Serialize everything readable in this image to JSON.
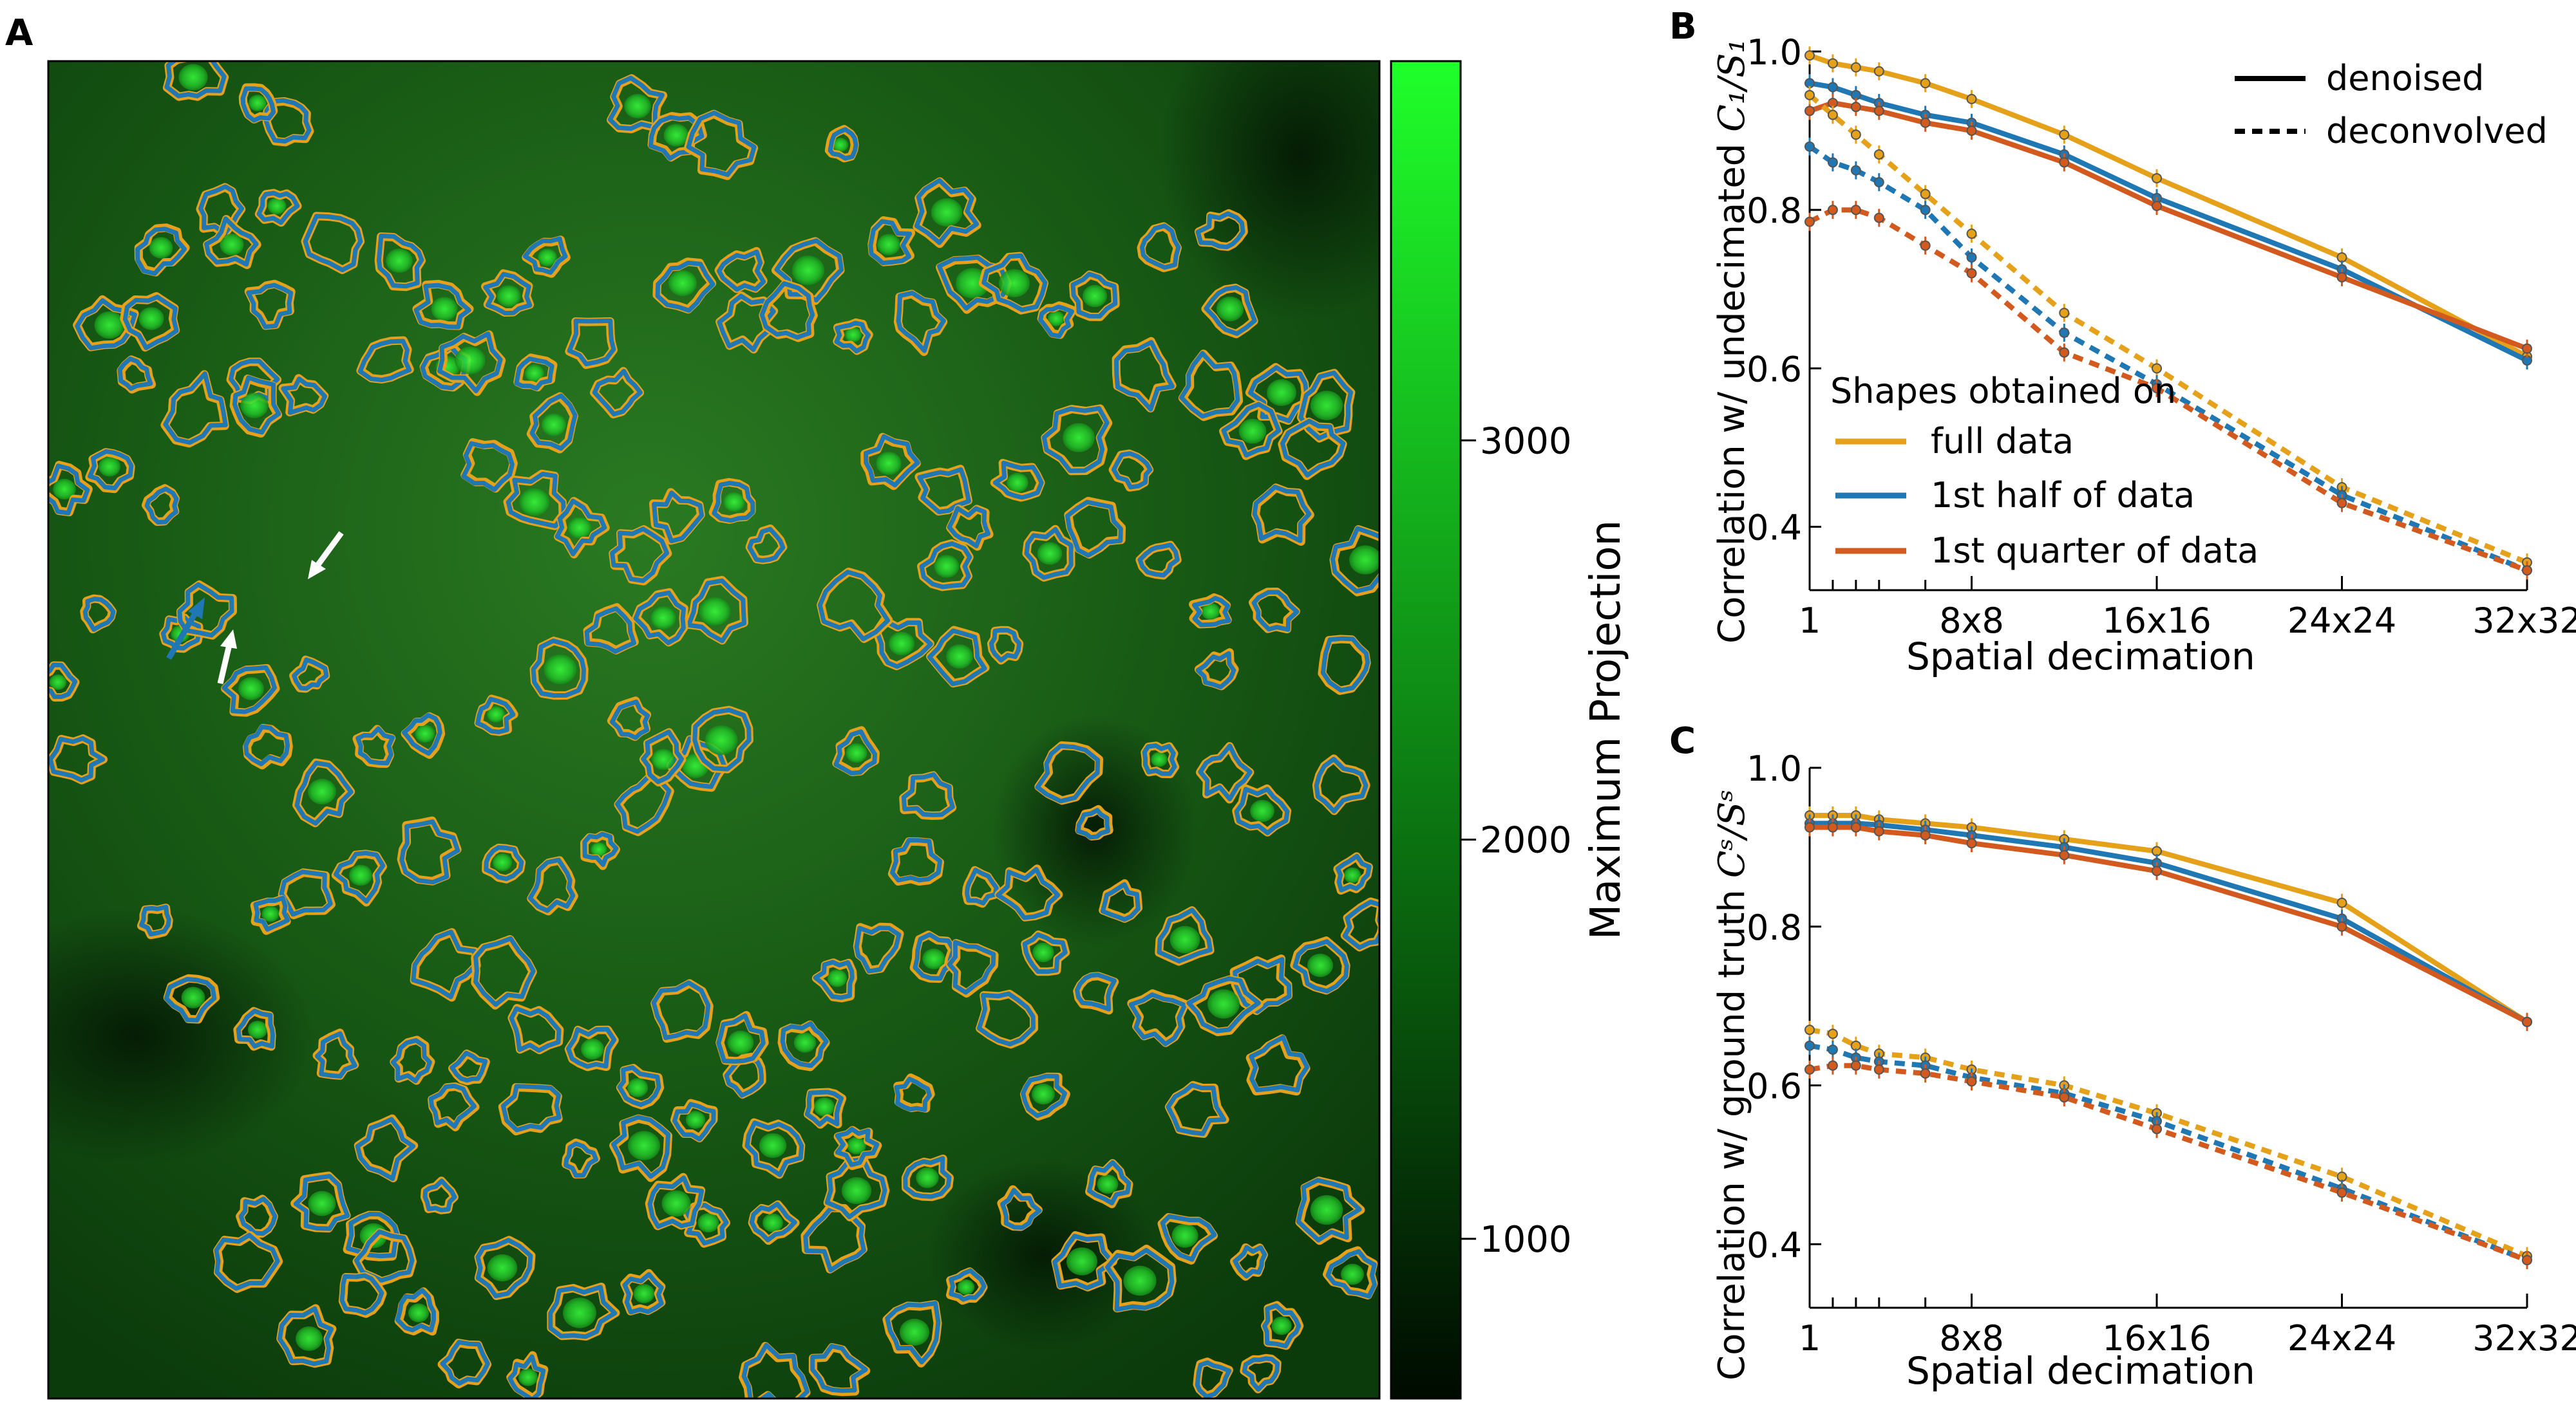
{
  "panels": {
    "a": {
      "letter": "A",
      "colorbar": {
        "label": "Maximum Projection",
        "ticks": [
          "1000",
          "2000",
          "3000"
        ],
        "tick_values": [
          1000,
          2000,
          3000
        ],
        "range": [
          600,
          3950
        ],
        "colors": {
          "low": "#000a00",
          "mid": "#0c7a12",
          "high": "#1fff2a"
        }
      }
    },
    "b": {
      "letter": "B",
      "ylabel_prefix": "Correlation w/ undecimated ",
      "ylabel_math": "C₁/S₁",
      "xlabel": "Spatial decimation"
    },
    "c": {
      "letter": "C",
      "ylabel_prefix": "Correlation w/ ground truth ",
      "ylabel_math": "Cˢ/Sˢ",
      "xlabel": "Spatial decimation"
    }
  },
  "legend": {
    "linestyles": [
      {
        "label": "denoised",
        "style": "solid"
      },
      {
        "label": "deconvolved",
        "style": "dashed"
      }
    ],
    "shapes_title": "Shapes obtained on",
    "series": [
      {
        "label": "full data",
        "color": "#e6a11b"
      },
      {
        "label": "1st half of data",
        "color": "#1f77b4"
      },
      {
        "label": "1st quarter of data",
        "color": "#d35a1e"
      }
    ]
  },
  "chart_data": [
    {
      "type": "line",
      "panel": "B",
      "xlabel": "Spatial decimation",
      "ylabel": "Correlation w/ undecimated C1/S1",
      "x": [
        1,
        2,
        3,
        4,
        6,
        8,
        12,
        16,
        24,
        32
      ],
      "x_ticklabels": [
        "1",
        "8x8",
        "16x16",
        "24x24",
        "32x32"
      ],
      "x_tickvalues": [
        1,
        8,
        16,
        24,
        32
      ],
      "xlim": [
        1,
        32
      ],
      "ylim": [
        0.32,
        1.0
      ],
      "y_ticks": [
        "0.4",
        "0.6",
        "0.8",
        "1.0"
      ],
      "y_tickvalues": [
        0.4,
        0.6,
        0.8,
        1.0
      ],
      "series": [
        {
          "name": "full data",
          "kind": "denoised",
          "color": "#e6a11b",
          "values": [
            0.995,
            0.985,
            0.98,
            0.975,
            0.96,
            0.94,
            0.895,
            0.84,
            0.74,
            0.615
          ]
        },
        {
          "name": "1st half of data",
          "kind": "denoised",
          "color": "#1f77b4",
          "values": [
            0.96,
            0.955,
            0.945,
            0.935,
            0.92,
            0.91,
            0.87,
            0.815,
            0.725,
            0.61
          ]
        },
        {
          "name": "1st quarter of data",
          "kind": "denoised",
          "color": "#d35a1e",
          "values": [
            0.925,
            0.935,
            0.93,
            0.925,
            0.91,
            0.9,
            0.86,
            0.805,
            0.715,
            0.625
          ]
        },
        {
          "name": "full data",
          "kind": "deconvolved",
          "color": "#e6a11b",
          "values": [
            0.945,
            0.92,
            0.895,
            0.87,
            0.82,
            0.77,
            0.67,
            0.6,
            0.45,
            0.355
          ]
        },
        {
          "name": "1st half of data",
          "kind": "deconvolved",
          "color": "#1f77b4",
          "values": [
            0.88,
            0.86,
            0.85,
            0.835,
            0.8,
            0.74,
            0.645,
            0.58,
            0.44,
            0.345
          ]
        },
        {
          "name": "1st quarter of data",
          "kind": "deconvolved",
          "color": "#d35a1e",
          "values": [
            0.785,
            0.8,
            0.8,
            0.79,
            0.755,
            0.72,
            0.62,
            0.575,
            0.43,
            0.345
          ]
        }
      ]
    },
    {
      "type": "line",
      "panel": "C",
      "xlabel": "Spatial decimation",
      "ylabel": "Correlation w/ ground truth Cs/Ss",
      "x": [
        1,
        2,
        3,
        4,
        6,
        8,
        12,
        16,
        24,
        32
      ],
      "x_ticklabels": [
        "1",
        "8x8",
        "16x16",
        "24x24",
        "32x32"
      ],
      "x_tickvalues": [
        1,
        8,
        16,
        24,
        32
      ],
      "xlim": [
        1,
        32
      ],
      "ylim": [
        0.32,
        1.0
      ],
      "y_ticks": [
        "0.4",
        "0.6",
        "0.8",
        "1.0"
      ],
      "y_tickvalues": [
        0.4,
        0.6,
        0.8,
        1.0
      ],
      "series": [
        {
          "name": "full data",
          "kind": "denoised",
          "color": "#e6a11b",
          "values": [
            0.94,
            0.94,
            0.94,
            0.935,
            0.93,
            0.925,
            0.91,
            0.895,
            0.83,
            0.68
          ]
        },
        {
          "name": "1st half of data",
          "kind": "denoised",
          "color": "#1f77b4",
          "values": [
            0.93,
            0.93,
            0.93,
            0.928,
            0.922,
            0.915,
            0.9,
            0.88,
            0.81,
            0.68
          ]
        },
        {
          "name": "1st quarter of data",
          "kind": "denoised",
          "color": "#d35a1e",
          "values": [
            0.925,
            0.925,
            0.925,
            0.92,
            0.915,
            0.905,
            0.89,
            0.87,
            0.8,
            0.68
          ]
        },
        {
          "name": "full data",
          "kind": "deconvolved",
          "color": "#e6a11b",
          "values": [
            0.67,
            0.665,
            0.65,
            0.64,
            0.635,
            0.62,
            0.6,
            0.565,
            0.485,
            0.385
          ]
        },
        {
          "name": "1st half of data",
          "kind": "deconvolved",
          "color": "#1f77b4",
          "values": [
            0.65,
            0.645,
            0.635,
            0.63,
            0.625,
            0.61,
            0.59,
            0.555,
            0.47,
            0.38
          ]
        },
        {
          "name": "1st quarter of data",
          "kind": "deconvolved",
          "color": "#d35a1e",
          "values": [
            0.62,
            0.625,
            0.625,
            0.62,
            0.615,
            0.605,
            0.585,
            0.545,
            0.465,
            0.38
          ]
        }
      ]
    }
  ]
}
